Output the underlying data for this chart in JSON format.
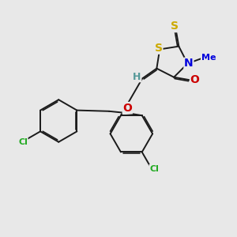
{
  "bg_color": "#e8e8e8",
  "bond_color": "#1a1a1a",
  "S_color": "#ccaa00",
  "N_color": "#0000dd",
  "O_color": "#cc0000",
  "Cl_color": "#22aa22",
  "H_color": "#559999",
  "bond_lw": 1.4,
  "dbo": 0.055,
  "fs": 8.5,
  "xlim": [
    0,
    10
  ],
  "ylim": [
    0,
    10
  ]
}
